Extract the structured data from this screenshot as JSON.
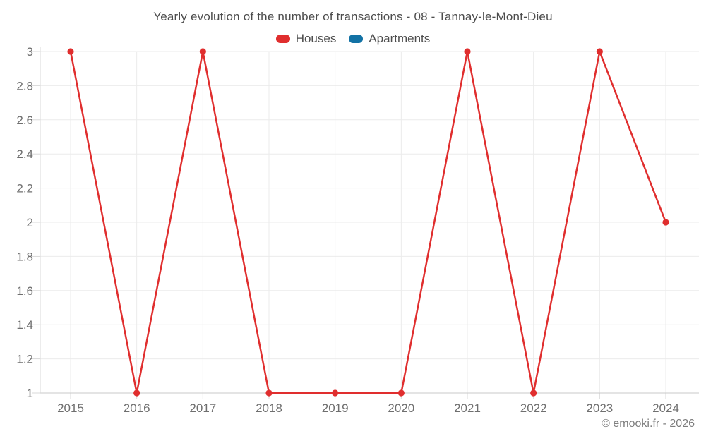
{
  "chart": {
    "title": "Yearly evolution of the number of transactions - 08 - Tannay-le-Mont-Dieu"
  },
  "legend": {
    "items": [
      {
        "label": "Houses",
        "color": "#e02e2e"
      },
      {
        "label": "Apartments",
        "color": "#1272a5"
      }
    ]
  },
  "footer": {
    "text": "© emooki.fr - 2026"
  },
  "colors": {
    "houses": "#e02e2e",
    "apartments": "#1272a5",
    "grid_line": "#ebebeb",
    "axis_line_bottom": "#c9c9c9",
    "axis_line_left": "#d9d9d9",
    "tick_mark": "#d9d9d9",
    "axis_label": "#6f6f6f",
    "title_text": "#4d4d4d"
  },
  "chart_data": {
    "type": "line",
    "title": "Yearly evolution of the number of transactions - 08 - Tannay-le-Mont-Dieu",
    "categories": [
      "2015",
      "2016",
      "2017",
      "2018",
      "2019",
      "2020",
      "2021",
      "2022",
      "2023",
      "2024"
    ],
    "series": [
      {
        "name": "Houses",
        "color": "#e02e2e",
        "values": [
          3,
          1,
          3,
          1,
          1,
          1,
          3,
          1,
          3,
          2
        ]
      },
      {
        "name": "Apartments",
        "color": "#1272a5",
        "values": []
      }
    ],
    "xlabel": "",
    "ylabel": "",
    "ylim": [
      1,
      3
    ],
    "ytick_step": 0.2,
    "ytick_labels": [
      "1",
      "1.2",
      "1.4",
      "1.6",
      "1.8",
      "2",
      "2.2",
      "2.4",
      "2.6",
      "2.8",
      "3"
    ],
    "grid": true,
    "legend_position": "top",
    "marker": "circle"
  }
}
